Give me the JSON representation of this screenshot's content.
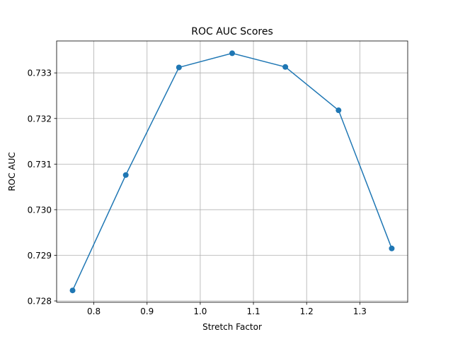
{
  "colors": {
    "series": "#1f77b4",
    "grid": "#b0b0b0",
    "axes": "#000000"
  },
  "chart_data": {
    "type": "line",
    "title": "ROC AUC Scores",
    "xlabel": "Stretch Factor",
    "ylabel": "ROC AUC",
    "xlim": [
      0.73,
      1.39
    ],
    "ylim": [
      0.72797,
      0.7337
    ],
    "xticks": [
      0.8,
      0.9,
      1.0,
      1.1,
      1.2,
      1.3
    ],
    "xtick_labels": [
      "0.8",
      "0.9",
      "1.0",
      "1.1",
      "1.2",
      "1.3"
    ],
    "yticks": [
      0.728,
      0.729,
      0.73,
      0.731,
      0.732,
      0.733
    ],
    "ytick_labels": [
      "0.728",
      "0.729",
      "0.730",
      "0.731",
      "0.732",
      "0.733"
    ],
    "grid": true,
    "marker": "circle",
    "series": [
      {
        "x": [
          0.76,
          0.86,
          0.96,
          1.06,
          1.16,
          1.26,
          1.36
        ],
        "y": [
          0.72823,
          0.73076,
          0.73312,
          0.73343,
          0.73313,
          0.73218,
          0.72915
        ]
      }
    ]
  }
}
